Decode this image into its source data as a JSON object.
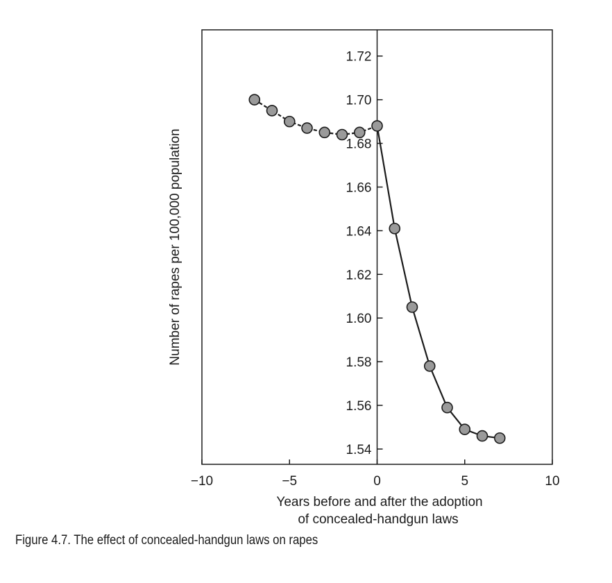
{
  "caption": "Figure 4.7. The effect of concealed-handgun laws on rapes",
  "chart_data": {
    "type": "line",
    "xlabel_lines": [
      "Years before and after the adoption",
      "of concealed-handgun laws"
    ],
    "ylabel": "Number of rapes per 100,000 population",
    "xlim": [
      -10,
      10
    ],
    "ylim": [
      1.533,
      1.732
    ],
    "xticks": [
      -10,
      -5,
      0,
      5,
      10
    ],
    "xtick_labels": [
      "−10",
      "−5",
      "0",
      "5",
      "10"
    ],
    "yticks": [
      1.54,
      1.56,
      1.58,
      1.6,
      1.62,
      1.64,
      1.66,
      1.68,
      1.7,
      1.72
    ],
    "ytick_labels": [
      "1.54",
      "1.56",
      "1.58",
      "1.60",
      "1.62",
      "1.64",
      "1.66",
      "1.68",
      "1.70",
      "1.72"
    ],
    "grid": false,
    "x": [
      -7,
      -6,
      -5,
      -4,
      -3,
      -2,
      -1,
      0,
      1,
      2,
      3,
      4,
      5,
      6,
      7
    ],
    "y": [
      1.7,
      1.695,
      1.69,
      1.687,
      1.685,
      1.684,
      1.685,
      1.688,
      1.641,
      1.605,
      1.578,
      1.559,
      1.549,
      1.546,
      1.545
    ],
    "styles": {
      "line": "#1a1a1a",
      "marker_fill": "#9a9a9a",
      "marker_stroke": "#1a1a1a"
    }
  }
}
